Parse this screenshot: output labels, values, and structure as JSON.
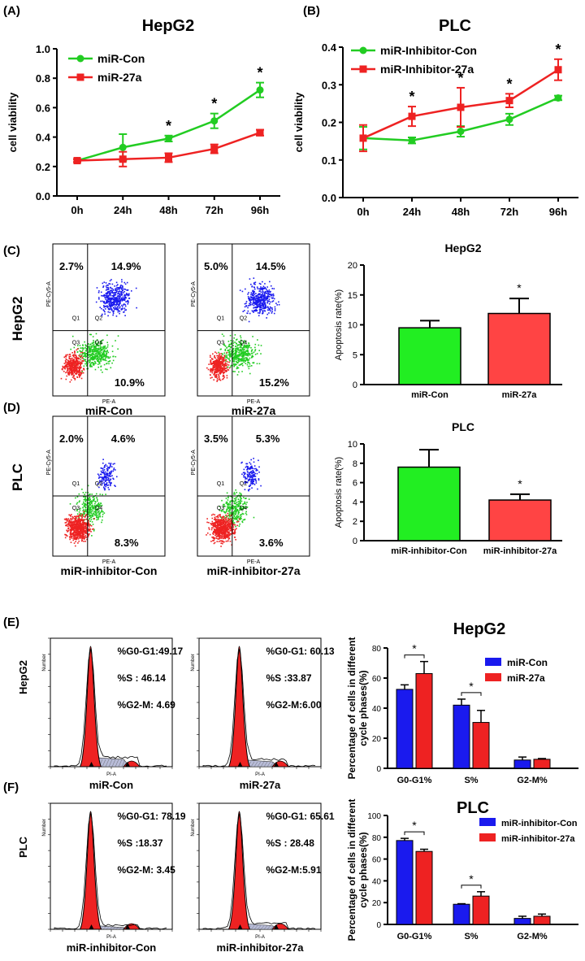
{
  "panels": {
    "A": "(A)",
    "B": "(B)",
    "C": "(C)",
    "D": "(D)",
    "E": "(E)",
    "F": "(F)"
  },
  "colors": {
    "green": "#22cc22",
    "red": "#ee2222",
    "blue": "#1a1aee",
    "bar_green": "#22ee22",
    "bar_red": "#ff4444"
  },
  "flow": {
    "row_hepg2": "HepG2",
    "row_plc": "PLC",
    "axis_x": "PE-A",
    "axis_y": "PE-Cy5-A",
    "quad_labels": [
      "Q1",
      "Q2",
      "Q3",
      "Q4"
    ],
    "plots": [
      {
        "caption": "miR-Con",
        "ul": "2.7%",
        "ur": "14.9%",
        "lr": "10.9%"
      },
      {
        "caption": "miR-27a",
        "ul": "5.0%",
        "ur": "14.5%",
        "lr": "15.2%"
      },
      {
        "caption": "miR-inhibitor-Con",
        "ul": "2.0%",
        "ur": "4.6%",
        "lr": "8.3%"
      },
      {
        "caption": "miR-inhibitor-27a",
        "ul": "3.5%",
        "ur": "5.3%",
        "lr": "3.6%"
      }
    ]
  },
  "cycle": {
    "row_hepg2": "HepG2",
    "row_plc": "PLC",
    "axis_x": "PI-A",
    "axis_y": "Number",
    "plots": [
      {
        "caption": "miR-Con",
        "g0": "%G0-G1:49.17",
        "s": "%S  :   46.14",
        "g2": "%G2-M:  4.69"
      },
      {
        "caption": "miR-27a",
        "g0": "%G0-G1: 60.13",
        "s": "%S  :33.87",
        "g2": "%G2-M:6.00"
      },
      {
        "caption": "miR-inhibitor-Con",
        "g0": "%G0-G1: 78.19",
        "s": "%S  :18.37",
        "g2": "%G2-M: 3.45"
      },
      {
        "caption": "miR-inhibitor-27a",
        "g0": "%G0-G1: 65.61",
        "s": "%S  :  28.48",
        "g2": "%G2-M:5.91"
      }
    ]
  },
  "chart_data": [
    {
      "id": "A",
      "type": "line",
      "title": "HepG2",
      "categories": [
        "0h",
        "24h",
        "48h",
        "72h",
        "96h"
      ],
      "ylabel": "cell viability",
      "ylim": [
        0,
        1.0
      ],
      "yticks": [
        "0.0",
        "0.2",
        "0.4",
        "0.6",
        "0.8",
        "1.0"
      ],
      "series": [
        {
          "name": "miR-Con",
          "values": [
            0.24,
            0.33,
            0.39,
            0.51,
            0.72
          ],
          "errors": [
            0.01,
            0.09,
            0.02,
            0.05,
            0.05
          ]
        },
        {
          "name": "miR-27a",
          "values": [
            0.24,
            0.25,
            0.26,
            0.32,
            0.43
          ],
          "errors": [
            0.01,
            0.05,
            0.03,
            0.03,
            0.02
          ]
        }
      ],
      "significance": [
        "",
        "",
        "*",
        "*",
        "*"
      ]
    },
    {
      "id": "B",
      "type": "line",
      "title": "PLC",
      "categories": [
        "0h",
        "24h",
        "48h",
        "72h",
        "96h"
      ],
      "ylabel": "cell viability",
      "ylim": [
        0,
        0.4
      ],
      "yticks": [
        "0.0",
        "0.1",
        "0.2",
        "0.3",
        "0.4"
      ],
      "series": [
        {
          "name": "miR-Inhibitor-Con",
          "values": [
            0.158,
            0.152,
            0.176,
            0.208,
            0.265
          ],
          "errors": [
            0.03,
            0.008,
            0.014,
            0.015,
            0.006
          ]
        },
        {
          "name": "miR-Inhibitor-27a",
          "values": [
            0.158,
            0.216,
            0.24,
            0.258,
            0.34
          ],
          "errors": [
            0.035,
            0.026,
            0.052,
            0.018,
            0.028
          ]
        }
      ],
      "significance": [
        "",
        "*",
        "*",
        "*",
        "*"
      ]
    },
    {
      "id": "C-bar",
      "type": "bar",
      "title": "HepG2",
      "categories": [
        "miR-Con",
        "miR-27a"
      ],
      "values": [
        9.5,
        11.9
      ],
      "errors": [
        1.2,
        2.5
      ],
      "ylabel": "Apoptosis rate(%)",
      "ylim": [
        0,
        20
      ],
      "yticks": [
        "0",
        "5",
        "10",
        "15",
        "20"
      ],
      "significance": [
        "",
        "*"
      ]
    },
    {
      "id": "D-bar",
      "type": "bar",
      "title": "PLC",
      "categories": [
        "miR-inhibitor-Con",
        "miR-inhibitor-27a"
      ],
      "values": [
        7.6,
        4.2
      ],
      "errors": [
        1.8,
        0.6
      ],
      "ylabel": "Apoptosis rate(%)",
      "ylim": [
        0,
        10
      ],
      "yticks": [
        "0",
        "2",
        "4",
        "6",
        "8",
        "10"
      ],
      "significance": [
        "",
        "*"
      ]
    },
    {
      "id": "E-bar",
      "type": "bar",
      "title": "HepG2",
      "categories": [
        "G0-G1%",
        "S%",
        "G2-M%"
      ],
      "ylabel": "Percentage of cells in different cycle phases(%)",
      "ylim": [
        0,
        80
      ],
      "yticks": [
        "0",
        "20",
        "40",
        "60",
        "80"
      ],
      "series": [
        {
          "name": "miR-Con",
          "values": [
            52.5,
            42,
            5.5
          ],
          "errors": [
            3,
            4,
            2
          ]
        },
        {
          "name": "miR-27a",
          "values": [
            63,
            30.5,
            6
          ],
          "errors": [
            8,
            8,
            0.5
          ]
        }
      ],
      "significance": [
        "*",
        "*",
        ""
      ]
    },
    {
      "id": "F-bar",
      "type": "bar",
      "title": "PLC",
      "categories": [
        "G0-G1%",
        "S%",
        "G2-M%"
      ],
      "ylabel": "Percentage of cells in different cycle phases(%)",
      "ylim": [
        0,
        100
      ],
      "yticks": [
        "0",
        "20",
        "40",
        "60",
        "80",
        "100"
      ],
      "series": [
        {
          "name": "miR-inhibitor-Con",
          "values": [
            77,
            18.5,
            5.5
          ],
          "errors": [
            2,
            0.5,
            2
          ]
        },
        {
          "name": "miR-inhibitor-27a",
          "values": [
            67,
            26,
            7.5
          ],
          "errors": [
            2,
            4,
            2
          ]
        }
      ],
      "significance": [
        "*",
        "*",
        ""
      ]
    }
  ]
}
